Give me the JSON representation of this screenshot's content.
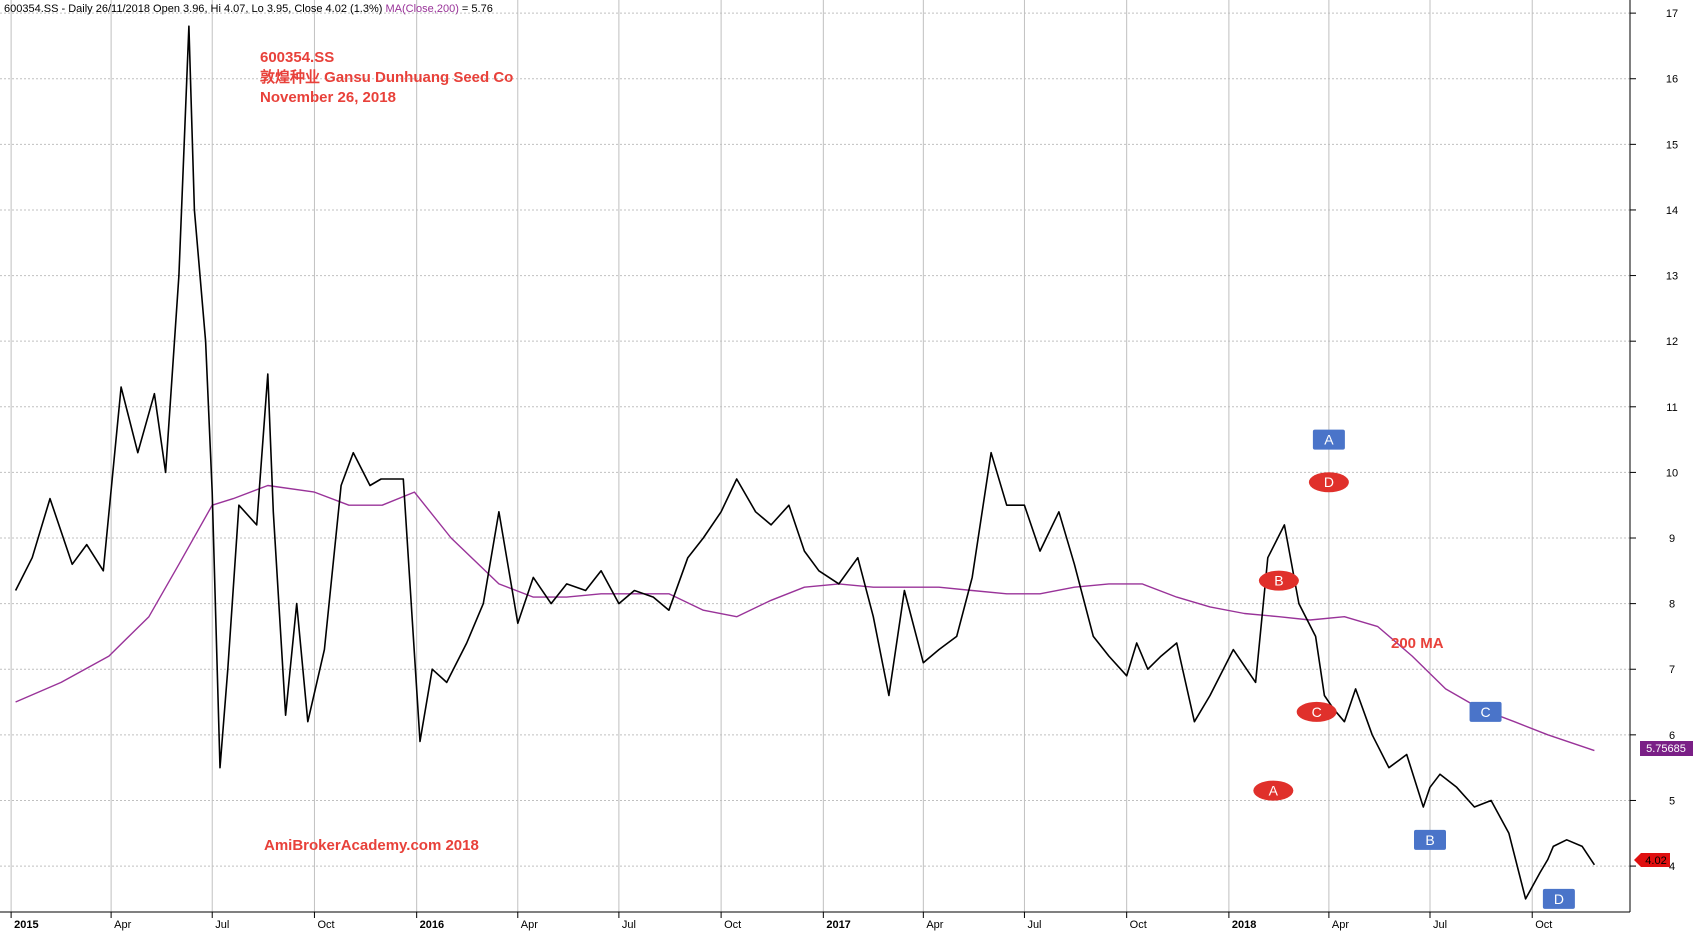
{
  "header": {
    "symbol": "600354.SS",
    "interval": "Daily",
    "date": "26/11/2018",
    "open": "3.96",
    "hi": "4.07",
    "lo": "3.95",
    "close": "4.02",
    "change": "(1.3%)",
    "ma_label": "MA(Close,200)",
    "ma_value": "5.76"
  },
  "title_block": {
    "line1": "600354.SS",
    "line2": "敦煌种业  Gansu Dunhuang Seed Co",
    "line3": "November 26, 2018"
  },
  "watermark": "AmiBrokerAcademy.com  2018",
  "ma_annotation": "200 MA",
  "last_price_label": "4.02",
  "ma_price_label": "5.75685",
  "colors": {
    "price": "#000000",
    "ma": "#993399",
    "annotation_red": "#e8413a",
    "marker_blue": "#4a74c9",
    "marker_red": "#e0302b",
    "grid": "#c0c0c0",
    "last_price_tag": "#e01010",
    "ma_tag": "#7a1f86"
  },
  "chart_data": {
    "type": "line",
    "title": "600354.SS",
    "x_ticks": [
      "2015",
      "Apr",
      "Jul",
      "Oct",
      "2016",
      "Apr",
      "Jul",
      "Oct",
      "2017",
      "Apr",
      "Jul",
      "Oct",
      "2018",
      "Apr",
      "Jul",
      "Oct"
    ],
    "y_ticks": [
      4,
      5,
      6,
      7,
      8,
      9,
      10,
      11,
      12,
      13,
      14,
      15,
      16,
      17
    ],
    "ylim": [
      3.3,
      17.2
    ],
    "grid": true,
    "series": [
      {
        "name": "600354.SS",
        "x": [
          "2015-01-05",
          "2015-01-20",
          "2015-02-05",
          "2015-02-25",
          "2015-03-10",
          "2015-03-25",
          "2015-04-10",
          "2015-04-25",
          "2015-05-10",
          "2015-05-20",
          "2015-06-01",
          "2015-06-10",
          "2015-06-15",
          "2015-06-25",
          "2015-07-01",
          "2015-07-08",
          "2015-07-15",
          "2015-07-25",
          "2015-08-10",
          "2015-08-20",
          "2015-08-25",
          "2015-09-05",
          "2015-09-15",
          "2015-09-25",
          "2015-10-10",
          "2015-10-25",
          "2015-11-05",
          "2015-11-20",
          "2015-11-30",
          "2015-12-10",
          "2015-12-20",
          "2016-01-04",
          "2016-01-15",
          "2016-01-28",
          "2016-02-15",
          "2016-03-01",
          "2016-03-15",
          "2016-04-01",
          "2016-04-15",
          "2016-05-01",
          "2016-05-15",
          "2016-06-01",
          "2016-06-15",
          "2016-07-01",
          "2016-07-15",
          "2016-08-01",
          "2016-08-15",
          "2016-09-01",
          "2016-09-15",
          "2016-10-01",
          "2016-10-15",
          "2016-11-01",
          "2016-11-15",
          "2016-12-01",
          "2016-12-15",
          "2016-12-28",
          "2017-01-15",
          "2017-02-01",
          "2017-02-15",
          "2017-03-01",
          "2017-03-15",
          "2017-04-01",
          "2017-04-15",
          "2017-05-01",
          "2017-05-15",
          "2017-06-01",
          "2017-06-15",
          "2017-07-01",
          "2017-07-15",
          "2017-08-01",
          "2017-08-15",
          "2017-09-01",
          "2017-09-15",
          "2017-10-01",
          "2017-10-10",
          "2017-10-20",
          "2017-11-01",
          "2017-11-15",
          "2017-12-01",
          "2017-12-15",
          "2018-01-05",
          "2018-01-25",
          "2018-02-05",
          "2018-02-20",
          "2018-03-05",
          "2018-03-20",
          "2018-03-28",
          "2018-04-05",
          "2018-04-15",
          "2018-04-25",
          "2018-05-10",
          "2018-05-25",
          "2018-06-10",
          "2018-06-25",
          "2018-07-01",
          "2018-07-10",
          "2018-07-25",
          "2018-08-10",
          "2018-08-25",
          "2018-09-10",
          "2018-09-25",
          "2018-10-08",
          "2018-10-15",
          "2018-10-20",
          "2018-11-01",
          "2018-11-15",
          "2018-11-26"
        ],
        "values": [
          8.2,
          8.7,
          9.6,
          8.6,
          8.9,
          8.5,
          11.3,
          10.3,
          11.2,
          10.0,
          13.0,
          16.8,
          14.0,
          12.0,
          9.7,
          5.5,
          7.0,
          9.5,
          9.2,
          11.5,
          9.4,
          6.3,
          8.0,
          6.2,
          7.3,
          9.8,
          10.3,
          9.8,
          9.9,
          9.9,
          9.9,
          5.9,
          7.0,
          6.8,
          7.4,
          8.0,
          9.4,
          7.7,
          8.4,
          8.0,
          8.3,
          8.2,
          8.5,
          8.0,
          8.2,
          8.1,
          7.9,
          8.7,
          9.0,
          9.4,
          9.9,
          9.4,
          9.2,
          9.5,
          8.8,
          8.5,
          8.3,
          8.7,
          7.8,
          6.6,
          8.2,
          7.1,
          7.3,
          7.5,
          8.4,
          10.3,
          9.5,
          9.5,
          8.8,
          9.4,
          8.6,
          7.5,
          7.2,
          6.9,
          7.4,
          7.0,
          7.2,
          7.4,
          6.2,
          6.6,
          7.3,
          6.8,
          8.7,
          9.2,
          8.0,
          7.5,
          6.6,
          6.4,
          6.2,
          6.7,
          6.0,
          5.5,
          5.7,
          4.9,
          5.2,
          5.4,
          5.2,
          4.9,
          5.0,
          4.5,
          3.5,
          3.9,
          4.1,
          4.3,
          4.4,
          4.3,
          4.02
        ]
      },
      {
        "name": "200 MA",
        "x": [
          "2015-01-05",
          "2015-02-15",
          "2015-03-30",
          "2015-05-05",
          "2015-06-01",
          "2015-07-01",
          "2015-07-20",
          "2015-08-20",
          "2015-10-01",
          "2015-11-01",
          "2015-12-01",
          "2015-12-30",
          "2016-02-01",
          "2016-03-15",
          "2016-04-15",
          "2016-05-15",
          "2016-06-15",
          "2016-07-15",
          "2016-08-15",
          "2016-09-15",
          "2016-10-15",
          "2016-11-15",
          "2016-12-15",
          "2017-01-15",
          "2017-02-15",
          "2017-03-15",
          "2017-04-15",
          "2017-05-15",
          "2017-06-15",
          "2017-07-15",
          "2017-08-15",
          "2017-09-15",
          "2017-10-15",
          "2017-11-15",
          "2017-12-15",
          "2018-01-15",
          "2018-02-15",
          "2018-03-15",
          "2018-04-15",
          "2018-05-15",
          "2018-06-15",
          "2018-07-15",
          "2018-08-15",
          "2018-09-15",
          "2018-10-15",
          "2018-11-26"
        ],
        "values": [
          6.5,
          6.8,
          7.2,
          7.8,
          8.6,
          9.5,
          9.6,
          9.8,
          9.7,
          9.5,
          9.5,
          9.7,
          9.0,
          8.3,
          8.1,
          8.1,
          8.15,
          8.15,
          8.15,
          7.9,
          7.8,
          8.05,
          8.25,
          8.3,
          8.25,
          8.25,
          8.25,
          8.2,
          8.15,
          8.15,
          8.25,
          8.3,
          8.3,
          8.1,
          7.95,
          7.85,
          7.8,
          7.75,
          7.8,
          7.65,
          7.2,
          6.7,
          6.4,
          6.2,
          6.0,
          5.76
        ]
      }
    ],
    "wave_markers": [
      {
        "label": "A",
        "style": "blue-square",
        "x": "2018-04-01",
        "y": 10.5
      },
      {
        "label": "D",
        "style": "red-oval",
        "x": "2018-04-01",
        "y": 9.85
      },
      {
        "label": "B",
        "style": "red-oval",
        "x": "2018-02-15",
        "y": 8.35
      },
      {
        "label": "C",
        "style": "red-oval",
        "x": "2018-03-21",
        "y": 6.35
      },
      {
        "label": "A",
        "style": "red-oval",
        "x": "2018-02-10",
        "y": 5.15
      },
      {
        "label": "B",
        "style": "blue-square",
        "x": "2018-07-01",
        "y": 4.4
      },
      {
        "label": "C",
        "style": "blue-square",
        "x": "2018-08-20",
        "y": 6.35
      },
      {
        "label": "D",
        "style": "blue-square",
        "x": "2018-10-25",
        "y": 3.5
      }
    ]
  }
}
